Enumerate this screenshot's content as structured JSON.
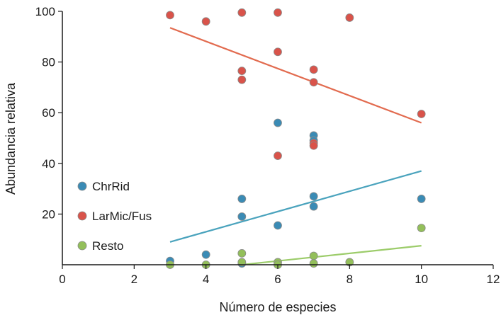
{
  "chart_data": {
    "type": "scatter",
    "xlabel": "Número de especies",
    "ylabel": "Abundancia relativa",
    "xlim": [
      0,
      12
    ],
    "ylim": [
      0,
      100
    ],
    "xticks": [
      0,
      2,
      4,
      6,
      8,
      10,
      12
    ],
    "yticks": [
      20,
      40,
      60,
      80,
      100
    ],
    "grid": false,
    "legend_position": "left-lower",
    "series": [
      {
        "name": "ChrRid",
        "color": "#3a8bb5",
        "line_color": "#4aa3bd",
        "points": [
          [
            3,
            1.5
          ],
          [
            4,
            4
          ],
          [
            5,
            26
          ],
          [
            5,
            19
          ],
          [
            5,
            0.5
          ],
          [
            6,
            56
          ],
          [
            6,
            15.5
          ],
          [
            7,
            51
          ],
          [
            7,
            49
          ],
          [
            7,
            27
          ],
          [
            7,
            23
          ],
          [
            10,
            26
          ]
        ],
        "trend": [
          [
            3,
            9
          ],
          [
            10,
            37
          ]
        ]
      },
      {
        "name": "LarMic/Fus",
        "color": "#d9534a",
        "line_color": "#e26b4f",
        "points": [
          [
            3,
            98.5
          ],
          [
            4,
            96
          ],
          [
            5,
            99.5
          ],
          [
            5,
            76.5
          ],
          [
            5,
            73
          ],
          [
            6,
            99.5
          ],
          [
            6,
            84
          ],
          [
            6,
            43
          ],
          [
            7,
            77
          ],
          [
            7,
            72
          ],
          [
            7,
            48
          ],
          [
            7,
            47
          ],
          [
            8,
            97.5
          ],
          [
            10,
            59.5
          ]
        ],
        "trend": [
          [
            3,
            93.5
          ],
          [
            10,
            56
          ]
        ]
      },
      {
        "name": "Resto",
        "color": "#93bf5a",
        "line_color": "#9ccc6a",
        "points": [
          [
            3,
            0
          ],
          [
            4,
            0
          ],
          [
            5,
            4.5
          ],
          [
            5,
            1
          ],
          [
            6,
            1
          ],
          [
            6,
            0
          ],
          [
            7,
            3.5
          ],
          [
            7,
            0.5
          ],
          [
            8,
            1
          ],
          [
            10,
            14.5
          ]
        ],
        "trend": [
          [
            5,
            0
          ],
          [
            10,
            7.5
          ]
        ]
      }
    ]
  }
}
